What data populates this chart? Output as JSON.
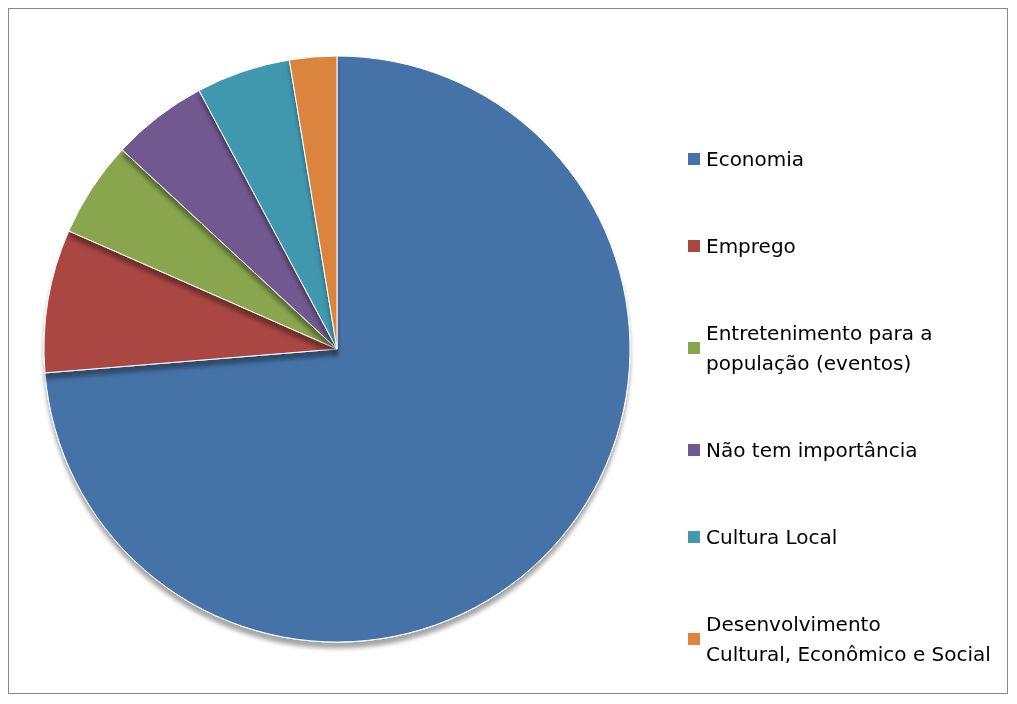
{
  "chart_data": {
    "type": "pie",
    "categories": [
      "Economia",
      "Emprego",
      "Entretenimento para a\npopulação (eventos)",
      "Não tem importância",
      "Cultura Local",
      "Desenvolvimento\nCultural, Econômico e Social"
    ],
    "values": [
      73.7,
      7.9,
      5.3,
      5.3,
      5.2,
      2.6
    ],
    "colors": [
      "#4572a7",
      "#aa4643",
      "#89a54e",
      "#71588f",
      "#4198af",
      "#db843d"
    ],
    "legend": "right"
  }
}
